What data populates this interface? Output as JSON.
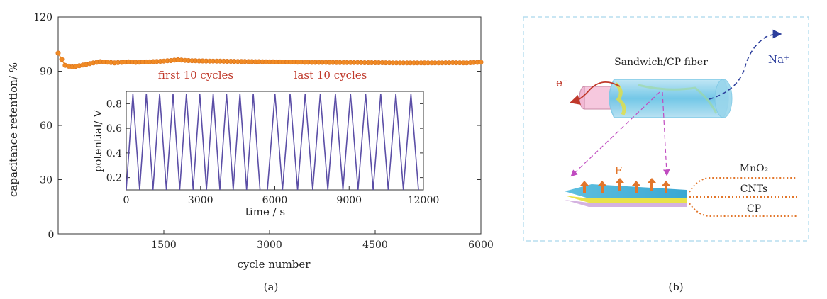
{
  "chart_data": {
    "type": "scatter",
    "panel_label": "(a)",
    "xlabel": "cycle  number",
    "ylabel": "capacitance retention/ %",
    "xlim": [
      0,
      6000
    ],
    "ylim": [
      0,
      120
    ],
    "xticks": [
      "0",
      "1500",
      "3000",
      "4500",
      "6000"
    ],
    "yticks": [
      "30",
      "60",
      "90",
      "120"
    ],
    "y_zero_label": "0",
    "grid": false,
    "series": [
      {
        "color": "#f08a24",
        "points": [
          [
            0,
            100
          ],
          [
            100,
            93.2
          ],
          [
            200,
            92.4
          ],
          [
            300,
            93.0
          ],
          [
            400,
            93.8
          ],
          [
            500,
            94.6
          ],
          [
            600,
            95.3
          ],
          [
            700,
            95.0
          ],
          [
            800,
            94.6
          ],
          [
            900,
            94.9
          ],
          [
            1000,
            95.2
          ],
          [
            1100,
            94.9
          ],
          [
            1200,
            95.1
          ],
          [
            1300,
            95.2
          ],
          [
            1400,
            95.4
          ],
          [
            1500,
            95.6
          ],
          [
            1600,
            95.9
          ],
          [
            1700,
            96.3
          ],
          [
            1800,
            96.0
          ],
          [
            1900,
            95.8
          ],
          [
            2000,
            95.7
          ],
          [
            2200,
            95.6
          ],
          [
            2400,
            95.5
          ],
          [
            2600,
            95.4
          ],
          [
            2800,
            95.3
          ],
          [
            3000,
            95.2
          ],
          [
            3200,
            95.1
          ],
          [
            3400,
            95.0
          ],
          [
            3600,
            94.9
          ],
          [
            3800,
            94.9
          ],
          [
            4000,
            94.8
          ],
          [
            4200,
            94.8
          ],
          [
            4400,
            94.7
          ],
          [
            4600,
            94.7
          ],
          [
            4800,
            94.6
          ],
          [
            5000,
            94.6
          ],
          [
            5200,
            94.6
          ],
          [
            5400,
            94.6
          ],
          [
            5600,
            94.7
          ],
          [
            5800,
            94.6
          ],
          [
            6000,
            95.0
          ]
        ]
      }
    ],
    "annotations": [
      "first 10 cycles",
      "last 10 cycles"
    ],
    "inset": {
      "type": "line",
      "xlabel": "time / s",
      "ylabel": "potential/ V",
      "xlim": [
        0,
        12000
      ],
      "ylim": [
        0.1,
        0.9
      ],
      "xticks": [
        "0",
        "3000",
        "6000",
        "9000",
        "12000"
      ],
      "yticks": [
        "0.2",
        "0.4",
        "0.6",
        "0.8"
      ],
      "line_color": "#5b4ea6",
      "v_min": 0.1,
      "v_max": 0.88,
      "segments": [
        {
          "name": "first 10 cycles",
          "t_start": 0,
          "t_end": 5400,
          "cycles": 10
        },
        {
          "name": "last 10 cycles",
          "t_start": 5700,
          "t_end": 11800,
          "cycles": 10
        }
      ]
    }
  },
  "diagram": {
    "panel_label": "(b)",
    "fiber_label": "Sandwich/CP fiber",
    "electron_label": "e⁻",
    "ion_label": "Na⁺",
    "force_label": "F",
    "layers": [
      "MnO₂",
      "CNTs",
      "CP"
    ]
  }
}
